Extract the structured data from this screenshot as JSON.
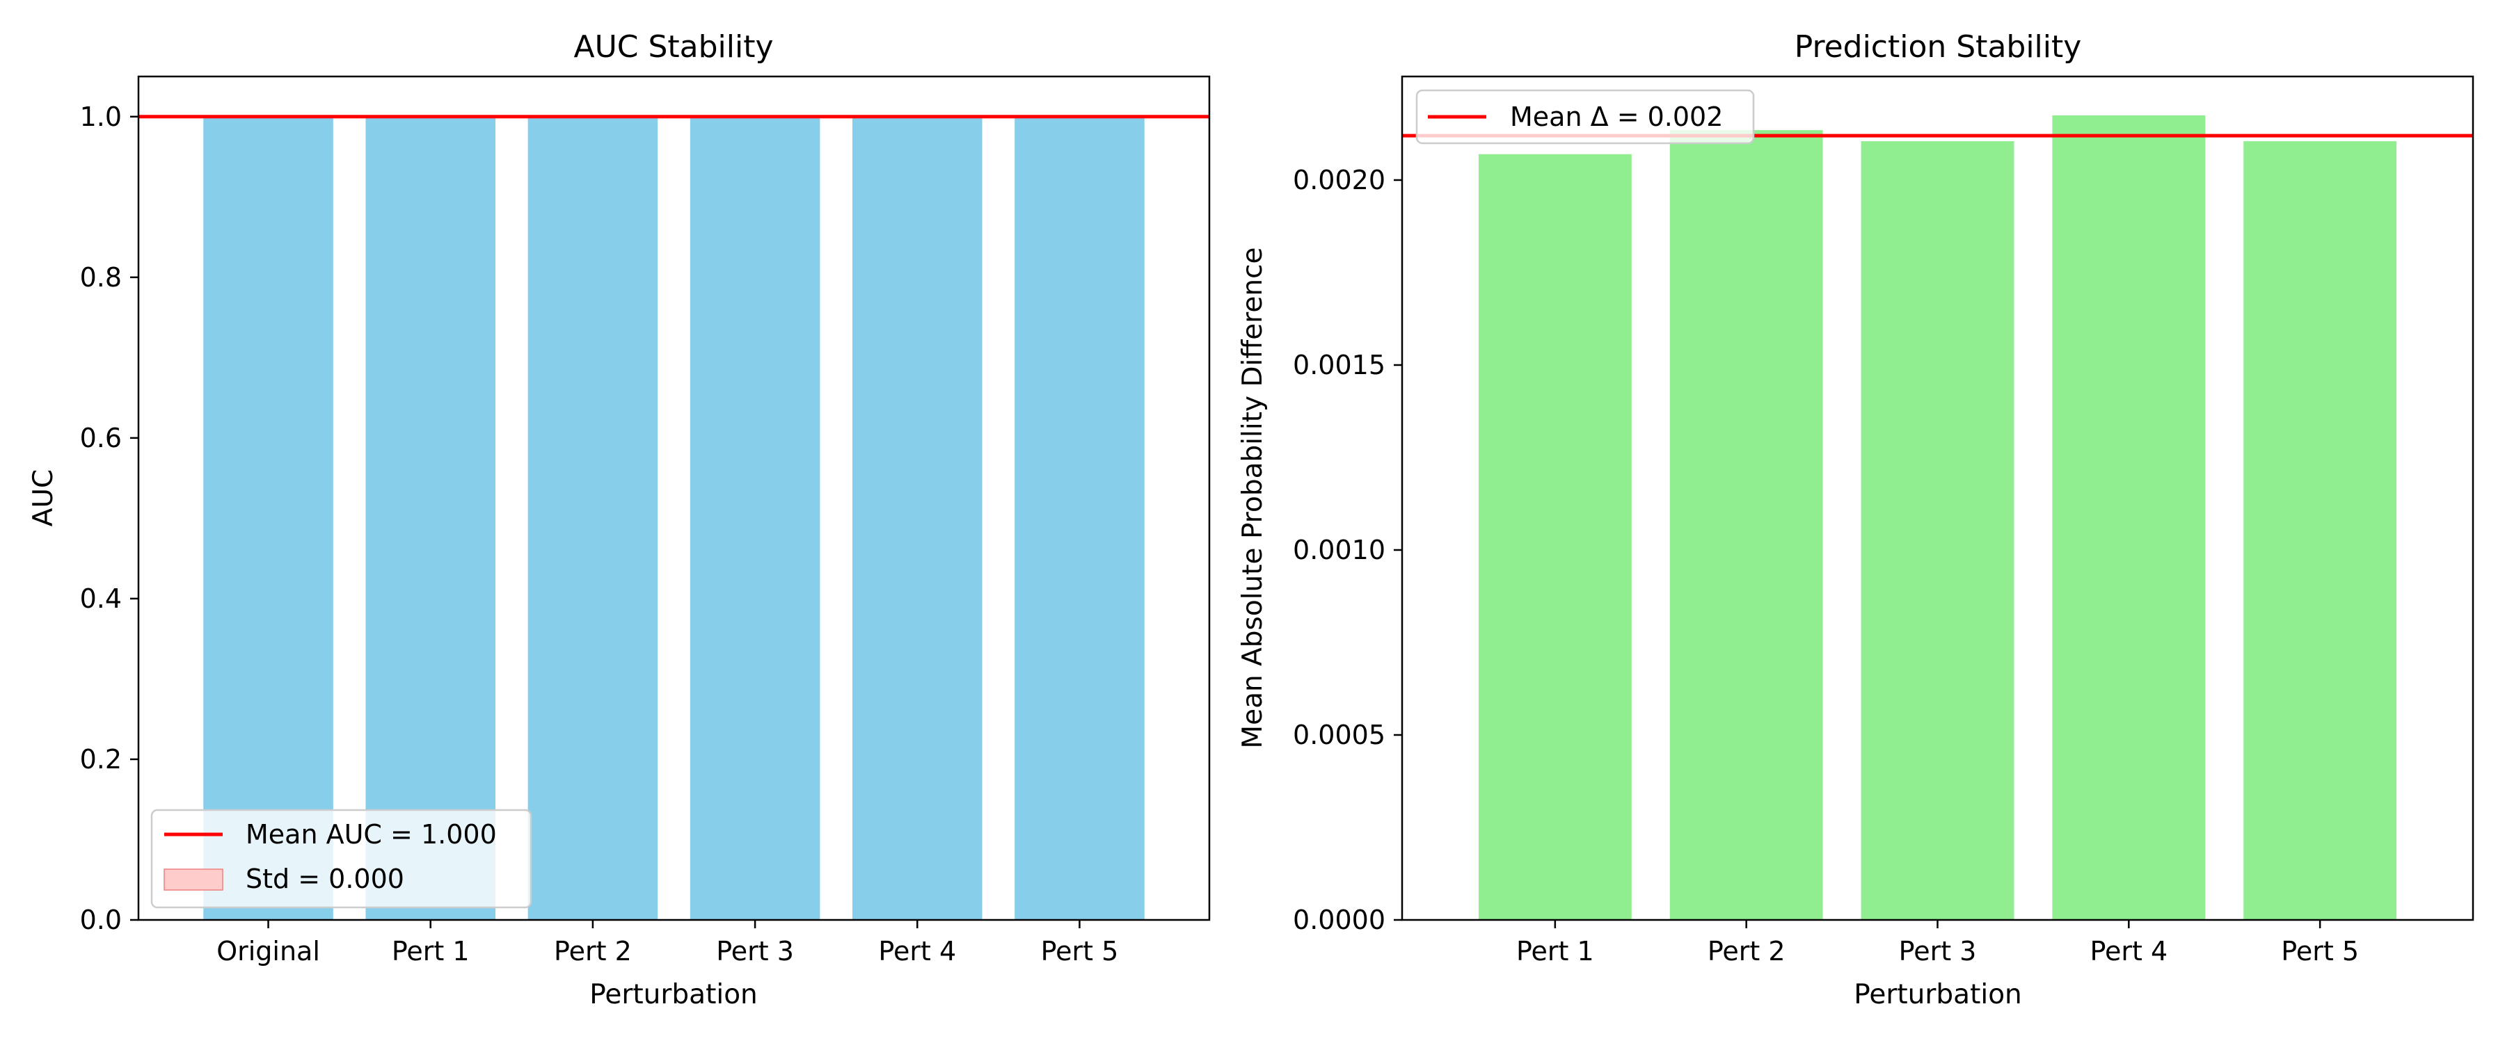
{
  "chart_data": [
    {
      "type": "bar",
      "title": "AUC Stability",
      "xlabel": "Perturbation",
      "ylabel": "AUC",
      "categories": [
        "Original",
        "Pert 1",
        "Pert 2",
        "Pert 3",
        "Pert 4",
        "Pert 5"
      ],
      "values": [
        1.0,
        1.0,
        1.0,
        1.0,
        1.0,
        1.0
      ],
      "ylim": [
        0,
        1.05
      ],
      "yticks": [
        "0.0",
        "0.2",
        "0.4",
        "0.6",
        "0.8",
        "1.0"
      ],
      "bar_color": "#87ceeb",
      "mean_line": 1.0,
      "mean_line_color": "#ff0000",
      "std_band_color": "#ffcccc",
      "grid": false,
      "legend_position": "lower-left",
      "legend": [
        "Mean AUC = 1.000",
        "Std = 0.000"
      ]
    },
    {
      "type": "bar",
      "title": "Prediction Stability",
      "xlabel": "Perturbation",
      "ylabel": "Mean Absolute Probability Difference",
      "categories": [
        "Pert 1",
        "Pert 2",
        "Pert 3",
        "Pert 4",
        "Pert 5"
      ],
      "values": [
        0.00207,
        0.002135,
        0.002105,
        0.002175,
        0.002105
      ],
      "ylim": [
        0,
        0.00228
      ],
      "yticks": [
        "0.0000",
        "0.0005",
        "0.0010",
        "0.0015",
        "0.0020"
      ],
      "bar_color": "#90ee90",
      "mean_line": 0.00212,
      "mean_line_color": "#ff0000",
      "grid": false,
      "legend_position": "upper-left",
      "legend": [
        "Mean Δ = 0.002"
      ]
    }
  ]
}
